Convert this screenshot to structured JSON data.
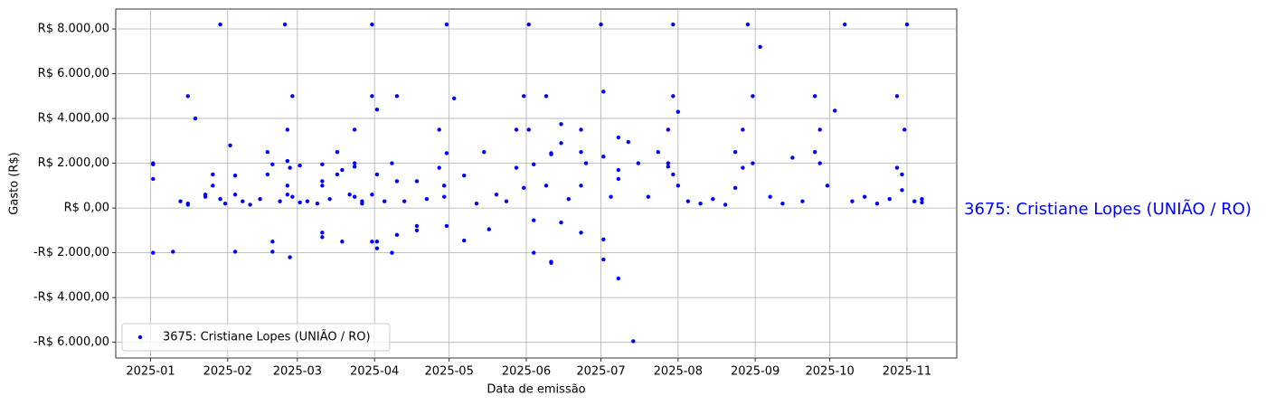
{
  "chart_data": {
    "type": "scatter",
    "xlabel": "Data de emissão",
    "ylabel": "Gasto (R$)",
    "annotation": "3675: Cristiane Lopes (UNIÃO / RO)",
    "legend": "lower left",
    "grid": true,
    "xlim": [
      "2024-12-18",
      "2025-11-21"
    ],
    "xticks": [
      "2025-01",
      "2025-02",
      "2025-03",
      "2025-04",
      "2025-05",
      "2025-06",
      "2025-07",
      "2025-08",
      "2025-09",
      "2025-10",
      "2025-11"
    ],
    "ylim": [
      -6700,
      8890
    ],
    "yticks": [
      {
        "value": -6000,
        "label": "-R$ 6.000,00"
      },
      {
        "value": -4000,
        "label": "-R$ 4.000,00"
      },
      {
        "value": -2000,
        "label": "-R$ 2.000,00"
      },
      {
        "value": 0,
        "label": "R$ 0,00"
      },
      {
        "value": 2000,
        "label": "R$ 2.000,00"
      },
      {
        "value": 4000,
        "label": "R$ 4.000,00"
      },
      {
        "value": 6000,
        "label": "R$ 6.000,00"
      },
      {
        "value": 8000,
        "label": "R$ 8.000,00"
      }
    ],
    "series": [
      {
        "name": "3675: Cristiane Lopes (UNIÃO / RO)",
        "color": "#0000ff",
        "x": [
          "2025-01-02",
          "2025-01-02",
          "2025-01-02",
          "2025-01-02",
          "2025-01-10",
          "2025-01-13",
          "2025-01-16",
          "2025-01-16",
          "2025-01-16",
          "2025-01-19",
          "2025-01-23",
          "2025-01-23",
          "2025-01-26",
          "2025-01-26",
          "2025-01-29",
          "2025-01-29",
          "2025-01-31",
          "2025-02-02",
          "2025-02-04",
          "2025-02-04",
          "2025-02-04",
          "2025-02-07",
          "2025-02-10",
          "2025-02-14",
          "2025-02-17",
          "2025-02-17",
          "2025-02-19",
          "2025-02-19",
          "2025-02-19",
          "2025-02-22",
          "2025-02-24",
          "2025-02-25",
          "2025-02-25",
          "2025-02-25",
          "2025-02-25",
          "2025-02-26",
          "2025-02-26",
          "2025-02-27",
          "2025-02-27",
          "2025-03-02",
          "2025-03-02",
          "2025-03-05",
          "2025-03-09",
          "2025-03-11",
          "2025-03-11",
          "2025-03-11",
          "2025-03-11",
          "2025-03-11",
          "2025-03-14",
          "2025-03-17",
          "2025-03-17",
          "2025-03-19",
          "2025-03-19",
          "2025-03-22",
          "2025-03-24",
          "2025-03-24",
          "2025-03-24",
          "2025-03-24",
          "2025-03-27",
          "2025-03-27",
          "2025-03-31",
          "2025-03-31",
          "2025-03-31",
          "2025-03-31",
          "2025-04-02",
          "2025-04-02",
          "2025-04-02",
          "2025-04-02",
          "2025-04-05",
          "2025-04-08",
          "2025-04-08",
          "2025-04-10",
          "2025-04-10",
          "2025-04-10",
          "2025-04-13",
          "2025-04-18",
          "2025-04-18",
          "2025-04-18",
          "2025-04-22",
          "2025-04-27",
          "2025-04-27",
          "2025-04-29",
          "2025-04-29",
          "2025-04-30",
          "2025-04-30",
          "2025-04-30",
          "2025-05-03",
          "2025-05-07",
          "2025-05-07",
          "2025-05-12",
          "2025-05-15",
          "2025-05-17",
          "2025-05-20",
          "2025-05-24",
          "2025-05-28",
          "2025-05-28",
          "2025-05-31",
          "2025-05-31",
          "2025-06-02",
          "2025-06-02",
          "2025-06-04",
          "2025-06-04",
          "2025-06-04",
          "2025-06-09",
          "2025-06-09",
          "2025-06-11",
          "2025-06-11",
          "2025-06-11",
          "2025-06-11",
          "2025-06-15",
          "2025-06-15",
          "2025-06-15",
          "2025-06-18",
          "2025-06-23",
          "2025-06-23",
          "2025-06-23",
          "2025-06-23",
          "2025-06-25",
          "2025-07-01",
          "2025-07-02",
          "2025-07-02",
          "2025-07-02",
          "2025-07-02",
          "2025-07-05",
          "2025-07-08",
          "2025-07-08",
          "2025-07-08",
          "2025-07-08",
          "2025-07-12",
          "2025-07-14",
          "2025-07-16",
          "2025-07-20",
          "2025-07-24",
          "2025-07-28",
          "2025-07-28",
          "2025-07-28",
          "2025-07-30",
          "2025-07-30",
          "2025-07-30",
          "2025-08-01",
          "2025-08-01",
          "2025-08-05",
          "2025-08-10",
          "2025-08-15",
          "2025-08-20",
          "2025-08-24",
          "2025-08-24",
          "2025-08-27",
          "2025-08-27",
          "2025-08-29",
          "2025-08-31",
          "2025-08-31",
          "2025-09-03",
          "2025-09-07",
          "2025-09-12",
          "2025-09-16",
          "2025-09-20",
          "2025-09-25",
          "2025-09-25",
          "2025-09-27",
          "2025-09-27",
          "2025-09-30",
          "2025-10-03",
          "2025-10-07",
          "2025-10-10",
          "2025-10-15",
          "2025-10-20",
          "2025-10-25",
          "2025-10-28",
          "2025-10-28",
          "2025-10-30",
          "2025-10-30",
          "2025-10-31",
          "2025-11-01",
          "2025-11-04",
          "2025-11-07",
          "2025-11-07"
        ],
        "values": [
          2000,
          1950,
          1300,
          -2000,
          -1950,
          300,
          5000,
          200,
          150,
          4000,
          600,
          500,
          1500,
          1000,
          8200,
          400,
          200,
          2800,
          1450,
          600,
          -1950,
          300,
          150,
          400,
          2500,
          1500,
          1950,
          -1500,
          -1950,
          300,
          8200,
          3500,
          2100,
          1000,
          600,
          1800,
          -2200,
          5000,
          500,
          1900,
          250,
          300,
          200,
          1950,
          1200,
          1000,
          -1100,
          -1300,
          400,
          2500,
          1500,
          1700,
          -1500,
          600,
          3500,
          2000,
          1850,
          500,
          300,
          200,
          8200,
          5000,
          600,
          -1500,
          4400,
          1500,
          -1500,
          -1800,
          300,
          2000,
          -2000,
          5000,
          1200,
          -1200,
          300,
          1200,
          -800,
          -1000,
          400,
          3500,
          1800,
          1000,
          500,
          8200,
          2450,
          -800,
          4900,
          1450,
          -1450,
          200,
          2500,
          -950,
          600,
          300,
          3500,
          1800,
          5000,
          900,
          8200,
          3500,
          1950,
          -550,
          -2000,
          5000,
          1000,
          2450,
          2400,
          -2400,
          -2450,
          3750,
          2900,
          -650,
          400,
          3500,
          2500,
          1000,
          -1100,
          2000,
          8200,
          5200,
          2300,
          -1400,
          -2300,
          500,
          3150,
          1700,
          1300,
          -3150,
          2950,
          -5950,
          2000,
          500,
          2500,
          3500,
          2000,
          1850,
          8200,
          5000,
          1500,
          4300,
          1000,
          300,
          200,
          400,
          150,
          2500,
          900,
          3500,
          1800,
          8200,
          5000,
          2000,
          7200,
          500,
          200,
          2250,
          300,
          5000,
          2500,
          3500,
          2000,
          1000,
          4350,
          8200,
          300,
          500,
          200,
          400,
          5000,
          1800,
          1500,
          800,
          3500,
          8200,
          300,
          400,
          250
        ]
      }
    ]
  }
}
